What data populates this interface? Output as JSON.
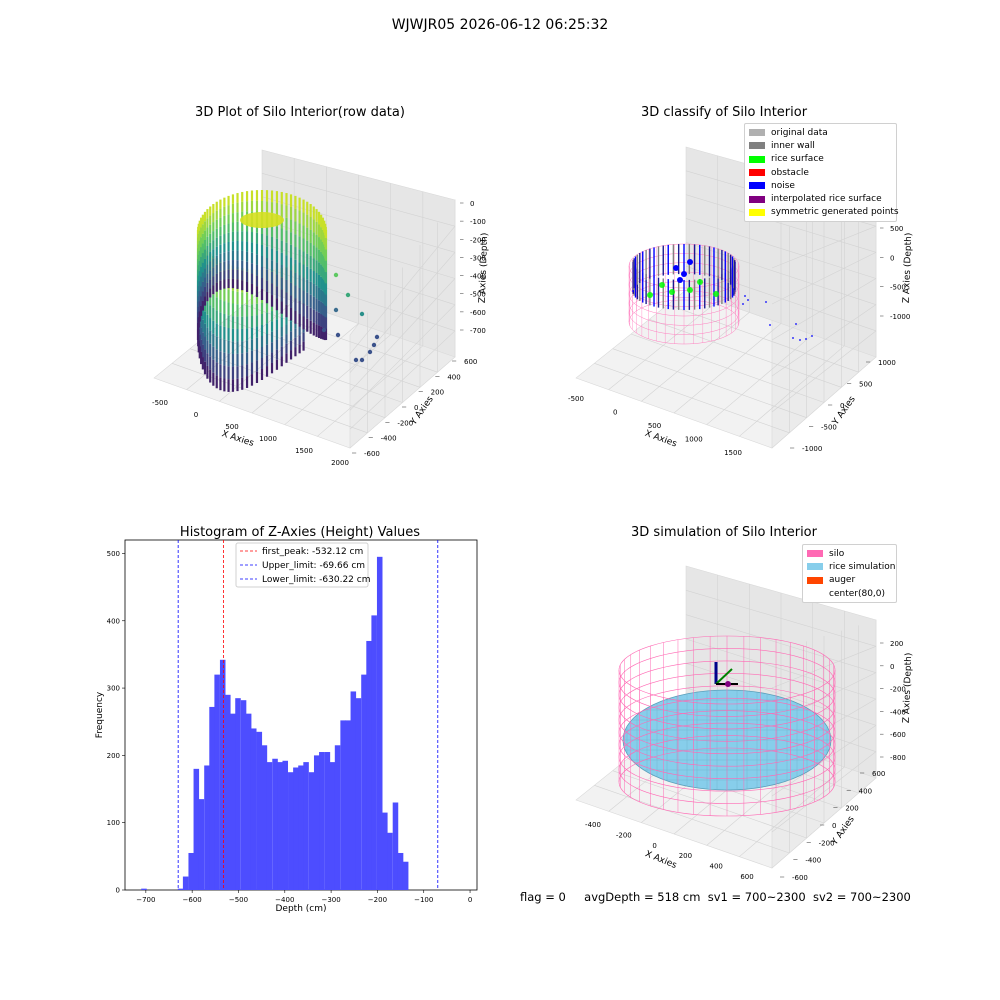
{
  "figure": {
    "title": "WJWJR05 2026-06-12 06:25:32"
  },
  "panels": {
    "raw": {
      "title": "3D Plot of Silo Interior(row data)",
      "xlabel": "X Axies",
      "ylabel": "Y Axies",
      "zlabel": "Z Axies (Depth)",
      "x_ticks": [
        "-500",
        "0",
        "500",
        "1000",
        "1500",
        "2000"
      ],
      "y_ticks": [
        "-600",
        "-400",
        "-200",
        "0",
        "200",
        "400",
        "600"
      ],
      "z_ticks": [
        "0",
        "-100",
        "-200",
        "-300",
        "-400",
        "-500",
        "-600",
        "-700"
      ]
    },
    "classify": {
      "title": "3D classify of Silo Interior",
      "xlabel": "X Axies",
      "ylabel": "Y Axies",
      "zlabel": "Z Axies (Depth)",
      "x_ticks": [
        "-500",
        "0",
        "500",
        "1000",
        "1500"
      ],
      "y_ticks": [
        "-1000",
        "-500",
        "0",
        "500",
        "1000"
      ],
      "z_ticks": [
        "500",
        "0",
        "-500",
        "-1000"
      ],
      "legend": [
        {
          "label": "original data",
          "color": "#b0b0b0"
        },
        {
          "label": "inner wall",
          "color": "#808080"
        },
        {
          "label": "rice surface",
          "color": "#00ff00"
        },
        {
          "label": "obstacle",
          "color": "#ff0000"
        },
        {
          "label": "noise",
          "color": "#0000ff"
        },
        {
          "label": "interpolated rice surface",
          "color": "#800080"
        },
        {
          "label": "symmetric generated points",
          "color": "#ffff00"
        }
      ]
    },
    "simulation": {
      "title": "3D simulation of Silo Interior",
      "xlabel": "X Axies",
      "ylabel": "Y Axies",
      "zlabel": "Z Axies (Depth)",
      "x_ticks": [
        "-400",
        "-200",
        "0",
        "200",
        "400",
        "600"
      ],
      "y_ticks": [
        "-600",
        "-400",
        "-200",
        "0",
        "200",
        "400",
        "600"
      ],
      "z_ticks": [
        "200",
        "0",
        "-200",
        "-400",
        "-600",
        "-800"
      ],
      "legend": [
        {
          "label": "silo",
          "color": "#ff69b4"
        },
        {
          "label": "rice simulation",
          "color": "#87ceeb"
        },
        {
          "label": "auger",
          "color": "#ff4500"
        },
        {
          "label": "center(80,0)",
          "color": ""
        }
      ]
    }
  },
  "chart_data": {
    "type": "bar",
    "title": "Histogram of Z-Axies (Height) Values",
    "xlabel": "Depth (cm)",
    "ylabel": "Frequency",
    "xlim": [
      -745,
      15
    ],
    "ylim": [
      0,
      520
    ],
    "x_ticks": [
      -700,
      -600,
      -500,
      -400,
      -300,
      -200,
      -100,
      0
    ],
    "y_ticks": [
      0,
      100,
      200,
      300,
      400,
      500
    ],
    "bin_width": 11.3,
    "bin_starts": [
      -710,
      -699,
      -687,
      -676,
      -665,
      -653,
      -642,
      -631,
      -620,
      -608,
      -597,
      -586,
      -574,
      -563,
      -552,
      -540,
      -529,
      -518,
      -507,
      -495,
      -484,
      -473,
      -461,
      -450,
      -439,
      -427,
      -416,
      -405,
      -393,
      -382,
      -371,
      -360,
      -348,
      -337,
      -326,
      -314,
      -303,
      -292,
      -280,
      -269,
      -258,
      -247,
      -235,
      -224,
      -213,
      -201,
      -190,
      -179,
      -167,
      -156,
      -145,
      -134,
      -122,
      -111,
      -100,
      -89,
      -77,
      -66,
      -55,
      -43,
      -32,
      -21,
      -10
    ],
    "values": [
      2,
      0,
      0,
      0,
      0,
      0,
      0,
      2,
      20,
      55,
      180,
      135,
      185,
      272,
      320,
      342,
      290,
      262,
      285,
      282,
      262,
      240,
      235,
      215,
      190,
      195,
      190,
      192,
      175,
      182,
      185,
      190,
      175,
      200,
      205,
      205,
      190,
      215,
      252,
      252,
      295,
      285,
      320,
      370,
      408,
      495,
      115,
      85,
      130,
      55,
      42,
      0,
      0,
      0,
      0,
      0,
      0,
      0,
      0,
      0,
      0,
      0,
      0
    ],
    "color": "#4d4dff",
    "lines": [
      {
        "label": "first_peak: -532.12 cm",
        "x": -532.12,
        "color": "#ff0000"
      },
      {
        "label": "Upper_limit: -69.66 cm",
        "x": -69.66,
        "color": "#0000ff"
      },
      {
        "label": "Lower_limit: -630.22 cm",
        "x": -630.22,
        "color": "#0000ff"
      }
    ],
    "legend_position": "upper center"
  },
  "status": {
    "flag": "flag = 0",
    "avg": "avgDepth = 518 cm",
    "sv1": "sv1 = 700~2300",
    "sv2": "sv2 = 700~2300"
  }
}
